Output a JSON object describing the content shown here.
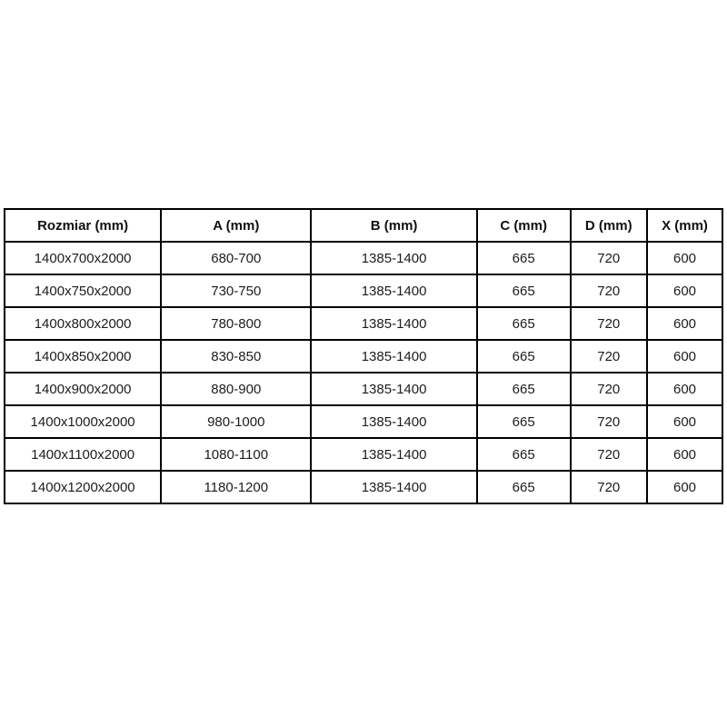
{
  "table": {
    "headers": [
      "Rozmiar (mm)",
      "A (mm)",
      "B (mm)",
      "C (mm)",
      "D (mm)",
      "X (mm)"
    ],
    "rows": [
      [
        "1400x700x2000",
        "680-700",
        "1385-1400",
        "665",
        "720",
        "600"
      ],
      [
        "1400x750x2000",
        "730-750",
        "1385-1400",
        "665",
        "720",
        "600"
      ],
      [
        "1400x800x2000",
        "780-800",
        "1385-1400",
        "665",
        "720",
        "600"
      ],
      [
        "1400x850x2000",
        "830-850",
        "1385-1400",
        "665",
        "720",
        "600"
      ],
      [
        "1400x900x2000",
        "880-900",
        "1385-1400",
        "665",
        "720",
        "600"
      ],
      [
        "1400x1000x2000",
        "980-1000",
        "1385-1400",
        "665",
        "720",
        "600"
      ],
      [
        "1400x1100x2000",
        "1080-1100",
        "1385-1400",
        "665",
        "720",
        "600"
      ],
      [
        "1400x1200x2000",
        "1180-1200",
        "1385-1400",
        "665",
        "720",
        "600"
      ]
    ]
  },
  "colors": {
    "border": "#000000",
    "background": "#ffffff",
    "text": "#1c1c1c"
  }
}
